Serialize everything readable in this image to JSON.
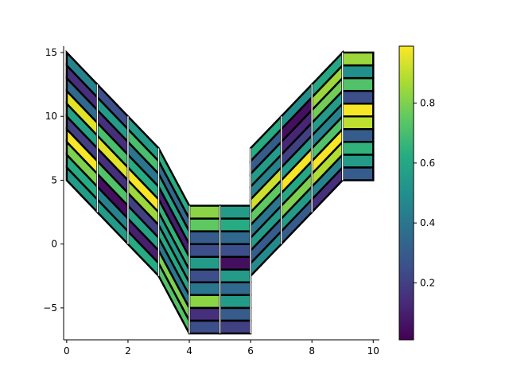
{
  "chart_data": {
    "type": "pcolormesh",
    "title": "",
    "xlabel": "",
    "ylabel": "",
    "xlim": [
      -0.1,
      10.2
    ],
    "ylim": [
      -7.5,
      15.5
    ],
    "x_ticks": [
      0,
      2,
      4,
      6,
      8,
      10
    ],
    "y_ticks": [
      -5,
      0,
      5,
      10,
      15
    ],
    "mesh": {
      "x_edges": [
        0,
        1,
        2,
        3,
        4,
        5,
        6,
        7,
        8,
        9,
        10
      ],
      "y_bottom": [
        5,
        2.5,
        0,
        -2.5,
        -7,
        -7,
        -2.5,
        0,
        2.5,
        5
      ],
      "y_top": [
        15,
        12.5,
        10,
        7.5,
        3,
        3,
        7.5,
        10,
        12.5,
        15
      ],
      "y_bottom_right": [
        2.5,
        0,
        -2.5,
        -7,
        -7,
        -7,
        0,
        2.5,
        5,
        5
      ],
      "y_top_right": [
        12.5,
        10,
        7.5,
        3,
        3,
        3,
        10,
        12.5,
        15,
        15
      ],
      "rows": 10,
      "values": [
        [
          0.55,
          0.55,
          0.62,
          0.72,
          0.25,
          0.2,
          0.48,
          0.3,
          0.15,
          0.3
        ],
        [
          0.62,
          0.45,
          0.1,
          0.8,
          0.15,
          0.3,
          0.3,
          0.55,
          0.45,
          0.55
        ],
        [
          0.8,
          0.05,
          0.58,
          0.4,
          0.82,
          0.55,
          0.55,
          0.8,
          0.88,
          0.65
        ],
        [
          0.98,
          0.72,
          0.2,
          0.6,
          0.4,
          0.35,
          0.4,
          0.6,
          0.98,
          0.3
        ],
        [
          0.2,
          0.15,
          0.85,
          0.55,
          0.25,
          0.55,
          0.75,
          0.98,
          0.72,
          0.9
        ],
        [
          0.58,
          0.95,
          0.98,
          0.65,
          0.55,
          0.05,
          0.92,
          0.55,
          0.45,
          0.98
        ],
        [
          0.95,
          0.7,
          0.62,
          0.1,
          0.25,
          0.25,
          0.45,
          0.2,
          0.55,
          0.25
        ],
        [
          0.35,
          0.15,
          0.4,
          0.58,
          0.3,
          0.35,
          0.55,
          0.12,
          0.78,
          0.72
        ],
        [
          0.15,
          0.55,
          0.7,
          0.35,
          0.75,
          0.62,
          0.3,
          0.05,
          0.85,
          0.5
        ],
        [
          0.45,
          0.25,
          0.55,
          0.62,
          0.82,
          0.55,
          0.62,
          0.5,
          0.6,
          0.85
        ]
      ]
    },
    "colorbar": {
      "colormap": "viridis",
      "range": [
        0.01,
        0.99
      ],
      "ticks": [
        0.2,
        0.4,
        0.6,
        0.8
      ],
      "tick_labels": [
        "0.2",
        "0.4",
        "0.6",
        "0.8"
      ]
    },
    "x_tick_labels": [
      "0",
      "2",
      "4",
      "6",
      "8",
      "10"
    ],
    "y_tick_labels": [
      "−5",
      "0",
      "5",
      "10",
      "15"
    ]
  }
}
